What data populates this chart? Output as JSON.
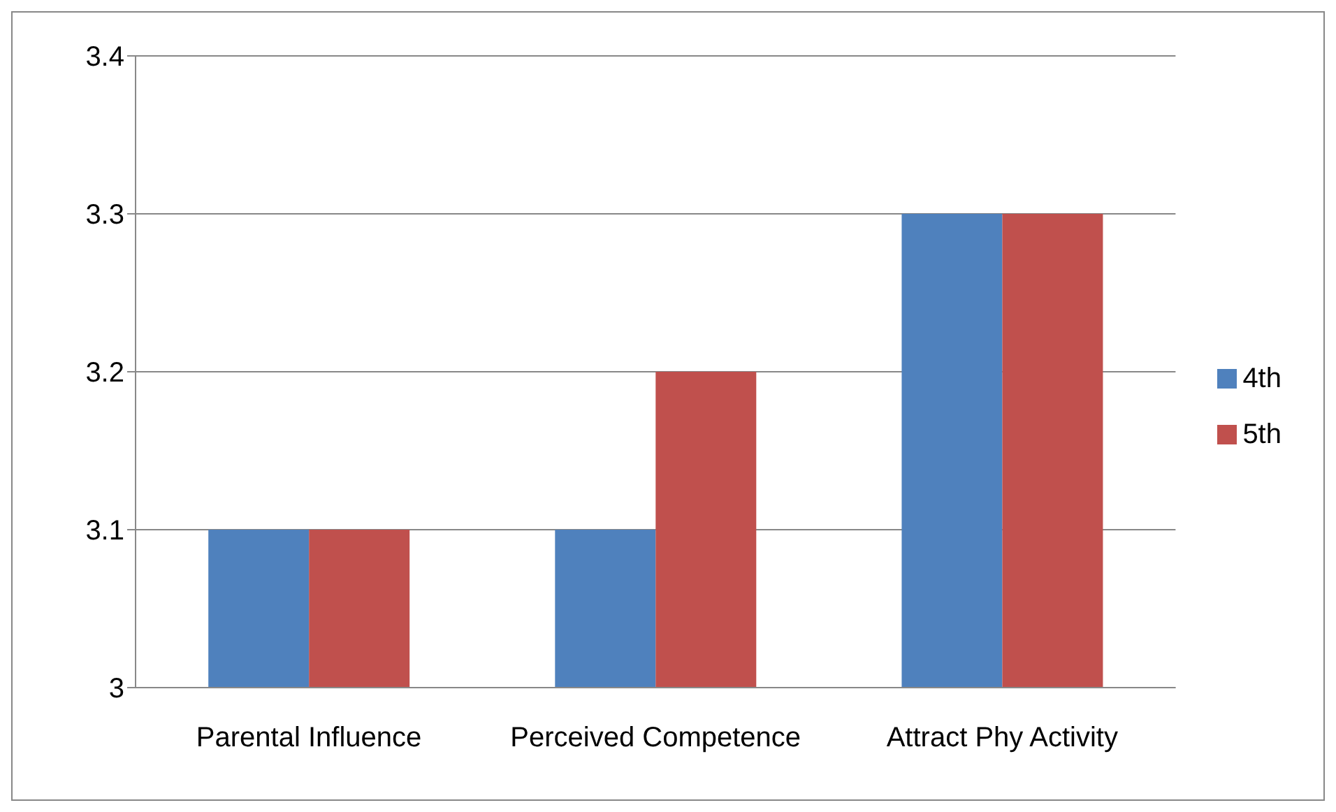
{
  "chart_data": {
    "type": "bar",
    "categories": [
      "Parental Influence",
      "Perceived Competence",
      "Attract Phy Activity"
    ],
    "series": [
      {
        "name": "4th",
        "color": "#4f81bd",
        "values": [
          3.1,
          3.1,
          3.3
        ]
      },
      {
        "name": "5th",
        "color": "#c0504d",
        "values": [
          3.1,
          3.2,
          3.3
        ]
      }
    ],
    "ylim": [
      3,
      3.4
    ],
    "yticks": [
      3,
      3.1,
      3.2,
      3.3,
      3.4
    ],
    "grid": "y",
    "legend": "right"
  }
}
